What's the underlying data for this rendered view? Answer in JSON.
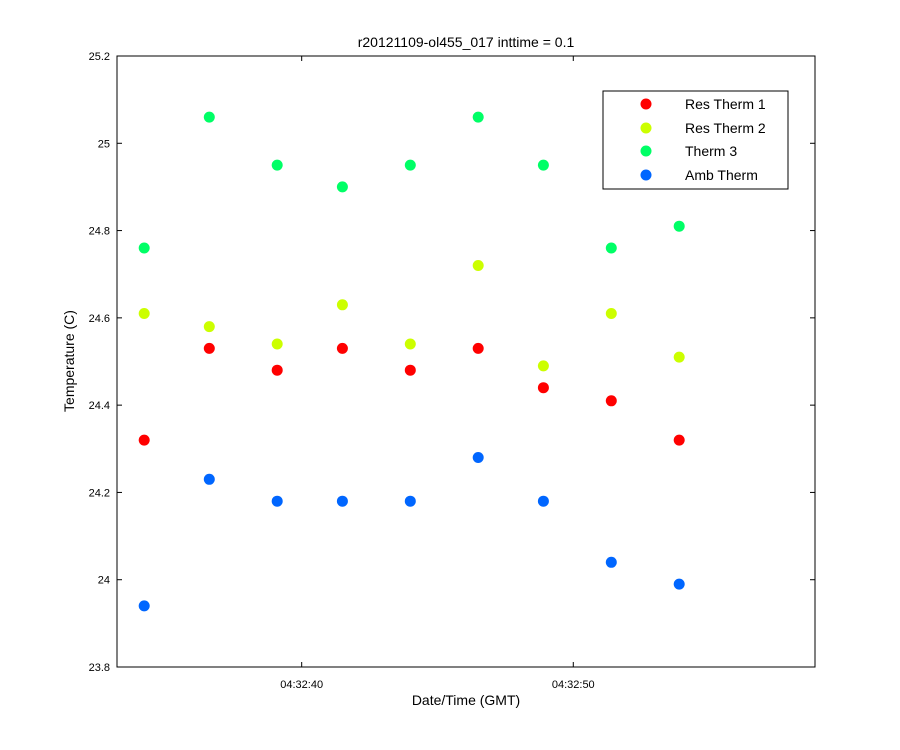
{
  "chart_data": {
    "type": "scatter",
    "title": "r20121109-ol455_017 inttime = 0.1",
    "xlabel": "Date/Time (GMT)",
    "ylabel": "Temperature (C)",
    "x_unit": "time (GMT)",
    "xlim": [
      "04:32:33.2",
      "04:32:58.9"
    ],
    "ylim": [
      23.8,
      25.2
    ],
    "x_ticks": [
      "04:32:40",
      "04:32:50"
    ],
    "y_ticks": [
      "23.8",
      "24",
      "24.2",
      "24.4",
      "24.6",
      "24.8",
      "25",
      "25.2"
    ],
    "x": [
      "04:32:34.2",
      "04:32:36.6",
      "04:32:39.1",
      "04:32:41.5",
      "04:32:44.0",
      "04:32:46.5",
      "04:32:48.9",
      "04:32:51.4",
      "04:32:53.9"
    ],
    "series": [
      {
        "name": "Res Therm 1",
        "color": "#ff0000",
        "values": [
          24.32,
          24.53,
          24.48,
          24.53,
          24.48,
          24.53,
          24.44,
          24.41,
          24.32
        ]
      },
      {
        "name": "Res Therm 2",
        "color": "#ccff00",
        "values": [
          24.61,
          24.58,
          24.54,
          24.63,
          24.54,
          24.72,
          24.49,
          24.61,
          24.51
        ]
      },
      {
        "name": "Therm 3",
        "color": "#00ff66",
        "values": [
          24.76,
          25.06,
          24.95,
          24.9,
          24.95,
          25.06,
          24.95,
          24.76,
          24.81
        ]
      },
      {
        "name": "Amb Therm",
        "color": "#0066ff",
        "values": [
          23.94,
          24.23,
          24.18,
          24.18,
          24.18,
          24.28,
          24.18,
          24.04,
          23.99
        ]
      }
    ],
    "grid": false,
    "legend_position": "top-right"
  }
}
